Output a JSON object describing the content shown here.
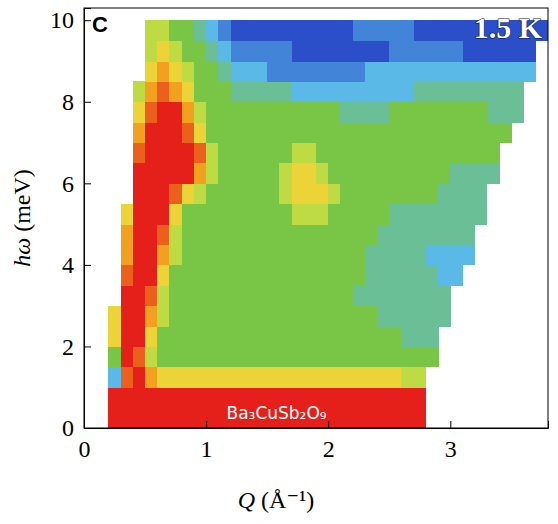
{
  "chart_data": {
    "type": "heatmap",
    "panel_label": "C",
    "x_label": "Q (Å⁻¹)",
    "y_label": "hω (meV)",
    "annotations": [
      "1.5 K",
      "Ba₃CuSb₂O₉"
    ],
    "xlim": [
      0,
      3.8
    ],
    "ylim": [
      0,
      10.3
    ],
    "xticks": [
      0,
      1,
      2,
      3
    ],
    "yticks": [
      0,
      2,
      4,
      6,
      8,
      10
    ],
    "zlim": [
      0,
      10
    ],
    "x_bins": [
      0.2,
      0.3,
      0.4,
      0.5,
      0.6,
      0.7,
      0.8,
      0.9,
      1.0,
      1.1,
      1.2,
      1.3,
      1.4,
      1.5,
      1.6,
      1.7,
      1.8,
      1.9,
      2.0,
      2.1,
      2.2,
      2.3,
      2.4,
      2.5,
      2.6,
      2.7,
      2.8,
      2.9,
      3.0,
      3.1,
      3.2,
      3.3,
      3.4,
      3.5,
      3.6,
      3.7,
      3.8
    ],
    "y_bins": [
      0,
      0.5,
      1,
      1.5,
      2,
      2.5,
      3,
      3.5,
      4,
      4.5,
      5,
      5.5,
      6,
      6.5,
      7,
      7.5,
      8,
      8.5,
      9,
      9.5,
      10
    ],
    "values": [
      [
        10,
        10,
        10,
        10,
        10,
        10,
        10,
        10,
        10,
        10,
        10,
        10,
        10,
        10,
        10,
        10,
        10,
        10,
        10,
        10,
        10,
        10,
        10,
        10,
        10,
        10,
        null,
        null,
        null,
        null,
        null,
        null,
        null,
        null,
        null,
        null
      ],
      [
        10,
        10,
        10,
        10,
        10,
        10,
        10,
        10,
        10,
        10,
        10,
        10,
        10,
        10,
        10,
        10,
        10,
        10,
        10,
        10,
        10,
        10,
        10,
        10,
        10,
        10,
        null,
        null,
        null,
        null,
        null,
        null,
        null,
        null,
        null,
        null
      ],
      [
        3,
        9,
        10,
        8,
        7,
        7,
        7,
        7,
        7,
        7,
        7,
        7,
        7,
        7,
        7,
        7,
        7,
        7,
        7,
        7,
        7,
        7,
        7,
        7,
        6,
        6,
        null,
        null,
        null,
        null,
        null,
        null,
        null,
        null,
        null,
        null
      ],
      [
        5,
        10,
        9,
        6,
        5,
        5,
        5,
        5,
        5,
        5,
        5,
        5,
        5,
        5,
        5,
        5,
        5,
        5,
        5,
        5,
        5,
        5,
        5,
        5,
        5,
        5,
        5,
        null,
        null,
        null,
        null,
        null,
        null,
        null,
        null,
        null
      ],
      [
        7,
        10,
        10,
        7,
        5,
        5,
        5,
        5,
        5,
        5,
        5,
        5,
        5,
        5,
        5,
        5,
        5,
        5,
        5,
        5,
        5,
        5,
        5,
        5,
        4,
        4,
        4,
        null,
        null,
        null,
        null,
        null,
        null,
        null,
        null,
        null
      ],
      [
        7,
        10,
        10,
        8,
        6,
        5,
        5,
        5,
        5,
        5,
        5,
        5,
        5,
        5,
        5,
        5,
        5,
        5,
        5,
        5,
        5,
        5,
        4,
        4,
        4,
        4,
        4,
        4,
        null,
        null,
        null,
        null,
        null,
        null,
        null,
        null
      ],
      [
        null,
        10,
        10,
        9,
        6,
        5,
        5,
        5,
        5,
        5,
        5,
        5,
        5,
        5,
        5,
        5,
        5,
        5,
        5,
        5,
        4,
        4,
        4,
        4,
        4,
        4,
        4,
        4,
        null,
        null,
        null,
        null,
        null,
        null,
        null,
        null
      ],
      [
        null,
        9,
        10,
        10,
        7,
        5,
        5,
        5,
        5,
        5,
        5,
        5,
        5,
        5,
        5,
        5,
        5,
        5,
        5,
        5,
        5,
        4,
        4,
        4,
        4,
        4,
        4,
        3,
        3,
        null,
        null,
        null,
        null,
        null,
        null,
        null
      ],
      [
        null,
        8,
        10,
        10,
        8,
        6,
        5,
        5,
        5,
        5,
        5,
        5,
        5,
        5,
        5,
        5,
        5,
        5,
        5,
        5,
        5,
        4,
        4,
        4,
        4,
        4,
        3,
        3,
        3,
        3,
        null,
        null,
        null,
        null,
        null,
        null
      ],
      [
        null,
        8,
        10,
        10,
        9,
        6,
        5,
        5,
        5,
        5,
        5,
        5,
        5,
        5,
        5,
        5,
        5,
        5,
        5,
        5,
        5,
        5,
        4,
        4,
        4,
        4,
        4,
        4,
        4,
        4,
        null,
        null,
        null,
        null,
        null,
        null
      ],
      [
        null,
        7,
        10,
        10,
        10,
        7,
        5,
        5,
        5,
        5,
        5,
        5,
        5,
        5,
        5,
        6,
        6,
        6,
        5,
        5,
        5,
        5,
        5,
        4,
        4,
        4,
        4,
        4,
        4,
        4,
        4,
        null,
        null,
        null,
        null,
        null
      ],
      [
        null,
        null,
        10,
        10,
        10,
        9,
        7,
        6,
        5,
        5,
        5,
        5,
        5,
        5,
        6,
        7,
        7,
        7,
        6,
        5,
        5,
        5,
        5,
        5,
        5,
        5,
        5,
        4,
        4,
        4,
        4,
        null,
        null,
        null,
        null,
        null
      ],
      [
        null,
        null,
        10,
        10,
        10,
        10,
        10,
        8,
        6,
        5,
        5,
        5,
        5,
        5,
        6,
        7,
        7,
        6,
        5,
        5,
        5,
        5,
        5,
        5,
        5,
        5,
        5,
        5,
        4,
        4,
        4,
        4,
        null,
        null,
        null,
        null
      ],
      [
        null,
        null,
        9,
        10,
        10,
        10,
        10,
        9,
        6,
        5,
        5,
        5,
        5,
        5,
        5,
        6,
        6,
        5,
        5,
        5,
        5,
        5,
        5,
        5,
        5,
        5,
        5,
        5,
        5,
        5,
        5,
        5,
        null,
        null,
        null,
        null
      ],
      [
        null,
        null,
        8,
        10,
        10,
        10,
        9,
        7,
        5,
        5,
        5,
        5,
        5,
        5,
        5,
        5,
        5,
        5,
        5,
        5,
        5,
        5,
        5,
        5,
        5,
        5,
        5,
        5,
        5,
        5,
        5,
        5,
        5,
        null,
        null,
        null
      ],
      [
        null,
        null,
        7,
        9,
        10,
        10,
        8,
        6,
        5,
        5,
        5,
        5,
        5,
        5,
        5,
        5,
        5,
        5,
        5,
        4,
        4,
        4,
        4,
        5,
        5,
        5,
        5,
        5,
        5,
        5,
        5,
        4,
        4,
        4,
        null,
        null
      ],
      [
        null,
        null,
        6,
        8,
        9,
        8,
        7,
        5,
        5,
        5,
        4,
        4,
        4,
        4,
        4,
        3,
        3,
        3,
        3,
        3,
        3,
        3,
        3,
        3,
        3,
        4,
        4,
        4,
        4,
        4,
        4,
        4,
        4,
        4,
        null,
        null
      ],
      [
        null,
        null,
        null,
        7,
        8,
        7,
        6,
        5,
        5,
        4,
        3,
        3,
        3,
        2,
        2,
        2,
        2,
        2,
        2,
        2,
        2,
        3,
        3,
        3,
        3,
        3,
        3,
        3,
        3,
        3,
        3,
        3,
        3,
        3,
        3,
        null
      ],
      [
        null,
        null,
        null,
        6,
        7,
        6,
        5,
        5,
        4,
        3,
        2,
        2,
        2,
        2,
        2,
        1,
        1,
        1,
        1,
        1,
        1,
        1,
        1,
        2,
        2,
        2,
        2,
        2,
        2,
        1,
        1,
        1,
        1,
        1,
        1,
        null
      ],
      [
        null,
        null,
        null,
        6,
        6,
        5,
        5,
        4,
        3,
        2,
        1,
        1,
        1,
        1,
        1,
        1,
        1,
        1,
        1,
        1,
        2,
        2,
        2,
        2,
        2,
        1,
        1,
        1,
        1,
        1,
        1,
        1,
        1,
        1,
        1,
        1
      ]
    ]
  }
}
